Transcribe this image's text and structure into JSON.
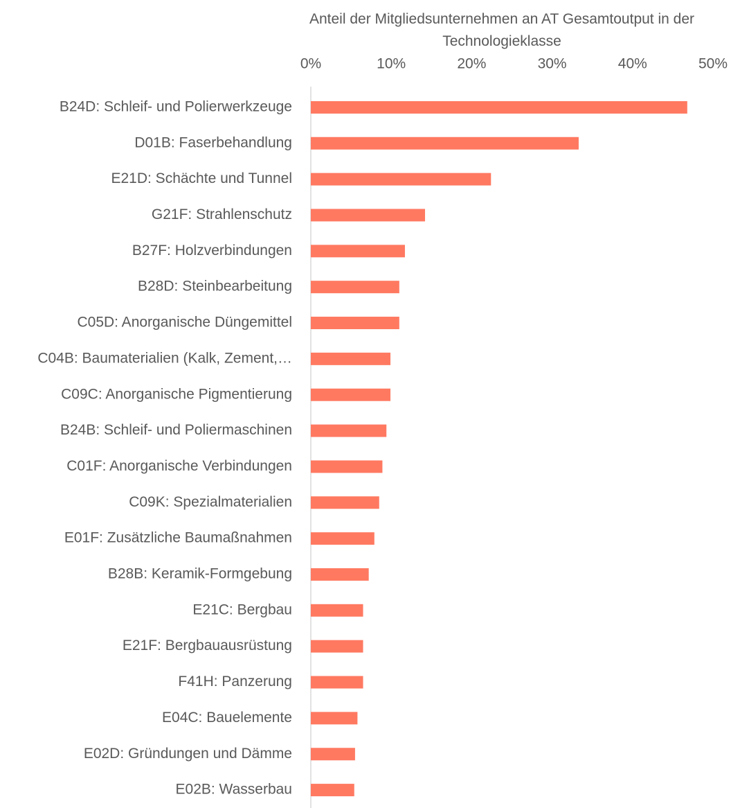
{
  "chart_data": {
    "type": "barh",
    "title": "Anteil der Mitgliedsunternehmen an AT Gesamtoutput in der Technologieklasse",
    "categories": [
      "B24D: Schleif- und Polierwerkzeuge",
      "D01B: Faserbehandlung",
      "E21D: Schächte und Tunnel",
      "G21F: Strahlenschutz",
      "B27F: Holzverbindungen",
      "B28D: Steinbearbeitung",
      "C05D: Anorganische Düngemittel",
      "C04B: Baumaterialien (Kalk, Zement,…",
      "C09C: Anorganische Pigmentierung",
      "B24B: Schleif- und Poliermaschinen",
      "C01F: Anorganische Verbindungen",
      "C09K: Spezialmaterialien",
      "E01F: Zusätzliche Baumaßnahmen",
      "B28B: Keramik-Formgebung",
      "E21C: Bergbau",
      "E21F: Bergbauausrüstung",
      "F41H: Panzerung",
      "E04C: Bauelemente",
      "E02D: Gründungen und Dämme",
      "E02B: Wasserbau"
    ],
    "values": [
      46.8,
      33.3,
      22.4,
      14.2,
      11.7,
      11.0,
      11.0,
      9.9,
      9.9,
      9.4,
      8.9,
      8.5,
      7.9,
      7.2,
      6.5,
      6.5,
      6.5,
      5.8,
      5.5,
      5.4
    ],
    "color": "#ff7961",
    "xlim": [
      0,
      50
    ],
    "xticks": [
      {
        "value": 0,
        "label": "0%"
      },
      {
        "value": 10,
        "label": "10%"
      },
      {
        "value": 20,
        "label": "20%"
      },
      {
        "value": 30,
        "label": "30%"
      },
      {
        "value": 40,
        "label": "40%"
      },
      {
        "value": 50,
        "label": "50%"
      }
    ],
    "grid": false
  }
}
